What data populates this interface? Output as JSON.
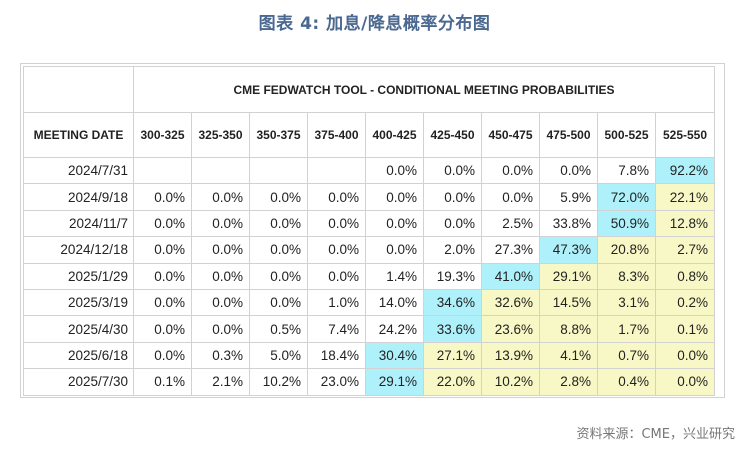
{
  "figure": {
    "title": "图表 4: 加息/降息概率分布图",
    "source": "资料来源：CME，兴业研究"
  },
  "table": {
    "tool_header": "CME FEDWATCH TOOL - CONDITIONAL MEETING PROBABILITIES",
    "date_header": "MEETING DATE",
    "columns": [
      "300-325",
      "325-350",
      "350-375",
      "375-400",
      "400-425",
      "425-450",
      "450-475",
      "475-500",
      "500-525",
      "525-550"
    ],
    "rows": [
      {
        "date": "2024/7/31",
        "values": [
          "",
          "",
          "",
          "",
          "0.0%",
          "0.0%",
          "0.0%",
          "0.0%",
          "7.8%",
          "92.2%"
        ]
      },
      {
        "date": "2024/9/18",
        "values": [
          "0.0%",
          "0.0%",
          "0.0%",
          "0.0%",
          "0.0%",
          "0.0%",
          "0.0%",
          "5.9%",
          "72.0%",
          "22.1%"
        ]
      },
      {
        "date": "2024/11/7",
        "values": [
          "0.0%",
          "0.0%",
          "0.0%",
          "0.0%",
          "0.0%",
          "0.0%",
          "2.5%",
          "33.8%",
          "50.9%",
          "12.8%"
        ]
      },
      {
        "date": "2024/12/18",
        "values": [
          "0.0%",
          "0.0%",
          "0.0%",
          "0.0%",
          "0.0%",
          "2.0%",
          "27.3%",
          "47.3%",
          "20.8%",
          "2.7%"
        ]
      },
      {
        "date": "2025/1/29",
        "values": [
          "0.0%",
          "0.0%",
          "0.0%",
          "0.0%",
          "1.4%",
          "19.3%",
          "41.0%",
          "29.1%",
          "8.3%",
          "0.8%"
        ]
      },
      {
        "date": "2025/3/19",
        "values": [
          "0.0%",
          "0.0%",
          "0.0%",
          "1.0%",
          "14.0%",
          "34.6%",
          "32.6%",
          "14.5%",
          "3.1%",
          "0.2%"
        ]
      },
      {
        "date": "2025/4/30",
        "values": [
          "0.0%",
          "0.0%",
          "0.5%",
          "7.4%",
          "24.2%",
          "33.6%",
          "23.6%",
          "8.8%",
          "1.7%",
          "0.1%"
        ]
      },
      {
        "date": "2025/6/18",
        "values": [
          "0.0%",
          "0.3%",
          "5.0%",
          "18.4%",
          "30.4%",
          "27.1%",
          "13.9%",
          "4.1%",
          "0.7%",
          "0.0%"
        ]
      },
      {
        "date": "2025/7/30",
        "values": [
          "0.1%",
          "2.1%",
          "10.2%",
          "23.0%",
          "29.1%",
          "22.0%",
          "10.2%",
          "2.8%",
          "0.4%",
          "0.0%"
        ]
      }
    ],
    "highlights": [
      {
        "row": 0,
        "blue": 9,
        "yellow_from": 10,
        "yellow_to": 9
      },
      {
        "row": 1,
        "blue": 8,
        "yellow_from": 9,
        "yellow_to": 9
      },
      {
        "row": 2,
        "blue": 8,
        "yellow_from": 9,
        "yellow_to": 9
      },
      {
        "row": 3,
        "blue": 7,
        "yellow_from": 8,
        "yellow_to": 9
      },
      {
        "row": 4,
        "blue": 6,
        "yellow_from": 7,
        "yellow_to": 9
      },
      {
        "row": 5,
        "blue": 5,
        "yellow_from": 6,
        "yellow_to": 9
      },
      {
        "row": 6,
        "blue": 5,
        "yellow_from": 6,
        "yellow_to": 9
      },
      {
        "row": 7,
        "blue": 4,
        "yellow_from": 5,
        "yellow_to": 9
      },
      {
        "row": 8,
        "blue": 4,
        "yellow_from": 5,
        "yellow_to": 9
      }
    ],
    "colors": {
      "max_cell": "#aef1fb",
      "lower_rate_cell": "#f8f8c6",
      "title": "#4a6890",
      "border": "#d2d2d2"
    }
  }
}
